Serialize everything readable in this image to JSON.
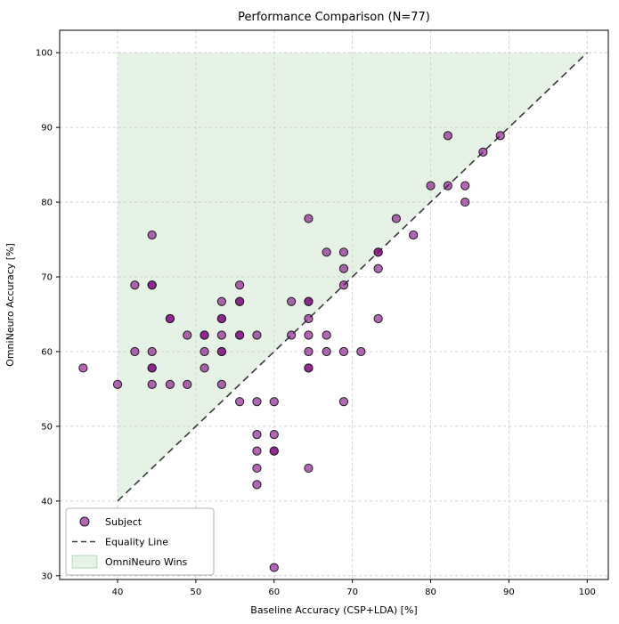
{
  "chart_data": {
    "type": "scatter",
    "title": "Performance Comparison (N=77)",
    "xlabel": "Baseline Accuracy (CSP+LDA) [%]",
    "ylabel": "OmniNeuro Accuracy [%]",
    "xlim": [
      32.6,
      102.7
    ],
    "ylim": [
      29.5,
      103.0
    ],
    "x_ticks": [
      40,
      50,
      60,
      70,
      80,
      90,
      100
    ],
    "y_ticks": [
      30,
      40,
      50,
      60,
      70,
      80,
      90,
      100
    ],
    "grid": true,
    "equality_line": {
      "from": [
        40,
        40
      ],
      "to": [
        100,
        100
      ]
    },
    "wins_region": [
      [
        40,
        40
      ],
      [
        40,
        100
      ],
      [
        100,
        100
      ]
    ],
    "colors": {
      "point_fill": "#800080",
      "point_opacity": 0.6,
      "point_edge": "#1c1c1c",
      "region_fill": "#008000",
      "region_opacity": 0.1,
      "equality_line": "#3a3a3a",
      "grid": "#c9c9c9",
      "frame": "#000000",
      "legend_border": "#b5b5b5"
    },
    "legend": {
      "position": "lower-left",
      "entries": [
        {
          "label": "Subject",
          "type": "marker"
        },
        {
          "label": "Equality Line",
          "type": "dashed-line"
        },
        {
          "label": "OmniNeuro Wins",
          "type": "patch"
        }
      ]
    },
    "series": [
      {
        "name": "Subject",
        "marker": "circle",
        "points": [
          [
            35.6,
            57.8
          ],
          [
            40.0,
            55.6
          ],
          [
            42.2,
            68.9
          ],
          [
            42.2,
            60.0
          ],
          [
            44.4,
            75.6
          ],
          [
            44.4,
            68.9
          ],
          [
            44.4,
            68.9
          ],
          [
            44.4,
            60.0
          ],
          [
            44.4,
            57.8
          ],
          [
            44.4,
            57.8
          ],
          [
            44.4,
            55.6
          ],
          [
            46.7,
            64.4
          ],
          [
            46.7,
            64.4
          ],
          [
            46.7,
            55.6
          ],
          [
            48.9,
            62.2
          ],
          [
            48.9,
            55.6
          ],
          [
            51.1,
            62.2
          ],
          [
            51.1,
            62.2
          ],
          [
            51.1,
            60.0
          ],
          [
            51.1,
            57.8
          ],
          [
            53.3,
            66.7
          ],
          [
            53.3,
            64.4
          ],
          [
            53.3,
            64.4
          ],
          [
            53.3,
            62.2
          ],
          [
            53.3,
            60.0
          ],
          [
            53.3,
            60.0
          ],
          [
            53.3,
            55.6
          ],
          [
            55.6,
            68.9
          ],
          [
            55.6,
            66.7
          ],
          [
            55.6,
            66.7
          ],
          [
            55.6,
            62.2
          ],
          [
            55.6,
            62.2
          ],
          [
            55.6,
            53.3
          ],
          [
            57.8,
            62.2
          ],
          [
            57.8,
            53.3
          ],
          [
            57.8,
            48.9
          ],
          [
            57.8,
            46.7
          ],
          [
            57.8,
            44.4
          ],
          [
            57.8,
            42.2
          ],
          [
            60.0,
            53.3
          ],
          [
            60.0,
            48.9
          ],
          [
            60.0,
            46.7
          ],
          [
            60.0,
            46.7
          ],
          [
            60.0,
            31.1
          ],
          [
            62.2,
            66.7
          ],
          [
            62.2,
            62.2
          ],
          [
            64.4,
            77.8
          ],
          [
            64.4,
            66.7
          ],
          [
            64.4,
            66.7
          ],
          [
            64.4,
            64.4
          ],
          [
            64.4,
            62.2
          ],
          [
            64.4,
            60.0
          ],
          [
            64.4,
            57.8
          ],
          [
            64.4,
            57.8
          ],
          [
            64.4,
            44.4
          ],
          [
            66.7,
            73.3
          ],
          [
            66.7,
            62.2
          ],
          [
            66.7,
            60.0
          ],
          [
            68.9,
            73.3
          ],
          [
            68.9,
            71.1
          ],
          [
            68.9,
            68.9
          ],
          [
            68.9,
            60.0
          ],
          [
            68.9,
            53.3
          ],
          [
            71.1,
            60.0
          ],
          [
            73.3,
            73.3
          ],
          [
            73.3,
            73.3
          ],
          [
            73.3,
            71.1
          ],
          [
            73.3,
            64.4
          ],
          [
            75.6,
            77.8
          ],
          [
            77.8,
            75.6
          ],
          [
            80.0,
            82.2
          ],
          [
            82.2,
            88.9
          ],
          [
            82.2,
            82.2
          ],
          [
            84.4,
            82.2
          ],
          [
            84.4,
            80.0
          ],
          [
            86.7,
            86.7
          ],
          [
            88.9,
            88.9
          ]
        ]
      }
    ]
  }
}
